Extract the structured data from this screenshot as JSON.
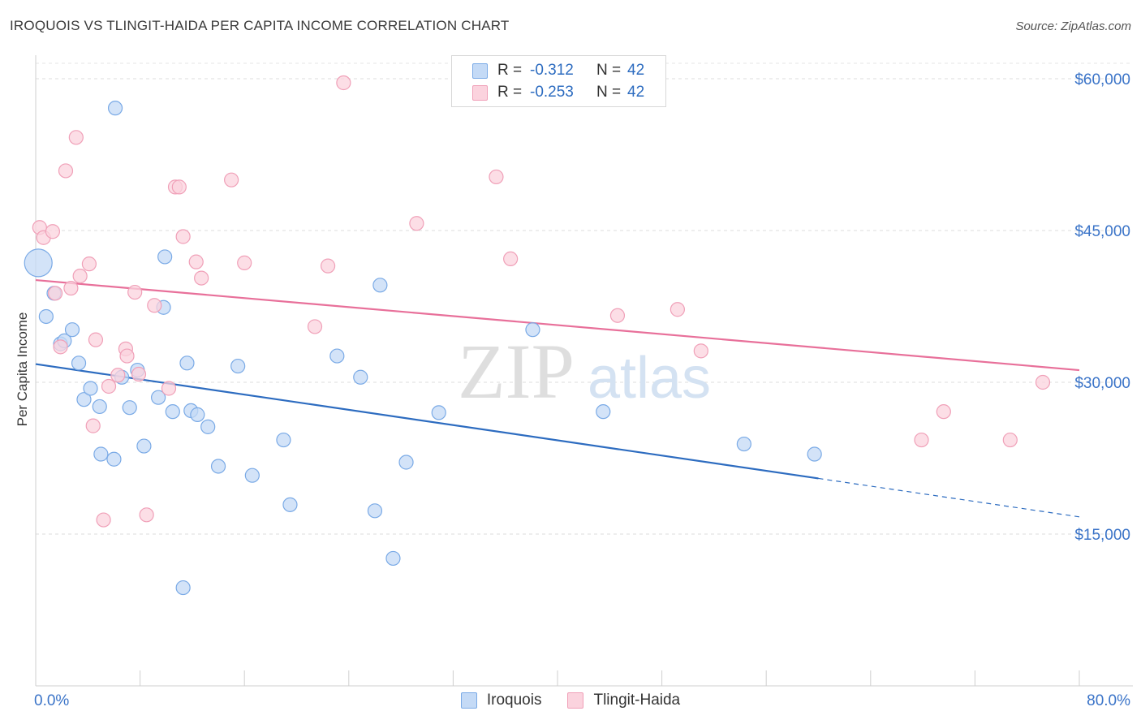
{
  "header": {
    "title": "IROQUOIS VS TLINGIT-HAIDA PER CAPITA INCOME CORRELATION CHART",
    "source": "Source: ZipAtlas.com"
  },
  "watermark": {
    "zip": "ZIP",
    "atlas": "atlas"
  },
  "legend": {
    "rows": [
      {
        "r_label": "R =",
        "r_value": "-0.312",
        "n_label": "N =",
        "n_value": "42",
        "color": "#7aaae6",
        "fill": "#c4daf6"
      },
      {
        "r_label": "R =",
        "r_value": "-0.253",
        "n_label": "N =",
        "n_value": "42",
        "color": "#f0a0b8",
        "fill": "#fbd3de"
      }
    ]
  },
  "chart_data": {
    "type": "scatter",
    "title": "IROQUOIS VS TLINGIT-HAIDA PER CAPITA INCOME CORRELATION CHART",
    "xlabel": "",
    "ylabel": "Per Capita Income",
    "xlim": [
      0,
      80
    ],
    "ylim": [
      0,
      63000
    ],
    "x_tick_labels": [
      "0.0%",
      "80.0%"
    ],
    "y_ticks": [
      15000,
      30000,
      45000,
      60000
    ],
    "y_tick_labels": [
      "$15,000",
      "$30,000",
      "$45,000",
      "$60,000"
    ],
    "grid": "horizontal dashed",
    "legend_position": "top-center",
    "series": [
      {
        "name": "Iroquois",
        "color": "#2d6cc0",
        "marker_fill": "#c4daf6",
        "marker_stroke": "#7aaae6",
        "trend": {
          "x": [
            0,
            60
          ],
          "y": [
            31800,
            20500
          ],
          "dashed_extension": {
            "x": [
              60,
              80
            ],
            "y": [
              20500,
              16700
            ]
          }
        },
        "points": [
          [
            0.2,
            41800,
            "large"
          ],
          [
            0.8,
            36500
          ],
          [
            1.4,
            38800
          ],
          [
            1.9,
            33800
          ],
          [
            2.2,
            34100
          ],
          [
            2.8,
            35200
          ],
          [
            3.3,
            31900
          ],
          [
            3.7,
            28300
          ],
          [
            4.2,
            29400
          ],
          [
            4.9,
            27600
          ],
          [
            5.0,
            22900
          ],
          [
            6.0,
            22400
          ],
          [
            6.1,
            57100
          ],
          [
            6.6,
            30500
          ],
          [
            7.2,
            27500
          ],
          [
            7.8,
            31200
          ],
          [
            8.3,
            23700
          ],
          [
            9.4,
            28500
          ],
          [
            9.8,
            37400
          ],
          [
            9.9,
            42400
          ],
          [
            10.5,
            27100
          ],
          [
            11.3,
            9700
          ],
          [
            11.6,
            31900
          ],
          [
            11.9,
            27200
          ],
          [
            12.4,
            26800
          ],
          [
            13.2,
            25600
          ],
          [
            14.0,
            21700
          ],
          [
            15.5,
            31600
          ],
          [
            16.6,
            20800
          ],
          [
            19.0,
            24300
          ],
          [
            19.5,
            17900
          ],
          [
            23.1,
            32600
          ],
          [
            24.9,
            30500
          ],
          [
            26.0,
            17300
          ],
          [
            26.4,
            39600
          ],
          [
            27.4,
            12600
          ],
          [
            28.4,
            22100
          ],
          [
            30.9,
            27000
          ],
          [
            38.1,
            35200
          ],
          [
            43.5,
            27100
          ],
          [
            54.3,
            23900
          ],
          [
            59.7,
            22900
          ]
        ]
      },
      {
        "name": "Tlingit-Haida",
        "color": "#e8709a",
        "marker_fill": "#fbd3de",
        "marker_stroke": "#f0a0b8",
        "trend": {
          "x": [
            0,
            80
          ],
          "y": [
            40100,
            31200
          ]
        },
        "points": [
          [
            0.3,
            45300
          ],
          [
            0.6,
            44300
          ],
          [
            1.3,
            44900
          ],
          [
            1.5,
            38800
          ],
          [
            1.9,
            33500
          ],
          [
            2.3,
            50900
          ],
          [
            2.7,
            39300
          ],
          [
            3.1,
            54200
          ],
          [
            3.4,
            40500
          ],
          [
            4.1,
            41700
          ],
          [
            4.4,
            25700
          ],
          [
            4.6,
            34200
          ],
          [
            5.2,
            16400
          ],
          [
            5.6,
            29600
          ],
          [
            6.3,
            30700
          ],
          [
            6.9,
            33300
          ],
          [
            7.0,
            32600
          ],
          [
            7.6,
            38900
          ],
          [
            7.9,
            30800
          ],
          [
            8.5,
            16900
          ],
          [
            9.1,
            37600
          ],
          [
            10.2,
            29400
          ],
          [
            10.7,
            49300
          ],
          [
            11.0,
            49300
          ],
          [
            11.3,
            44400
          ],
          [
            12.3,
            41900
          ],
          [
            12.7,
            40300
          ],
          [
            15.0,
            50000
          ],
          [
            16.0,
            41800
          ],
          [
            21.4,
            35500
          ],
          [
            22.4,
            41500
          ],
          [
            23.6,
            59600
          ],
          [
            29.2,
            45700
          ],
          [
            35.3,
            50300
          ],
          [
            36.4,
            42200
          ],
          [
            44.6,
            36600
          ],
          [
            49.2,
            37200
          ],
          [
            51.0,
            33100
          ],
          [
            67.9,
            24300
          ],
          [
            69.6,
            27100
          ],
          [
            74.7,
            24300
          ],
          [
            77.2,
            30000
          ]
        ]
      }
    ]
  }
}
